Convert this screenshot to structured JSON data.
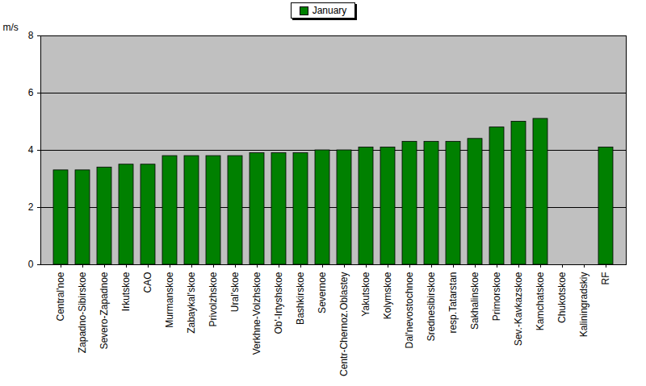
{
  "chart_data": {
    "type": "bar",
    "categories": [
      "Central'noe",
      "Zapadno-Sibirskoe",
      "Severo-Zapadnoe",
      "Irkutskoe",
      "CAO",
      "Murmanskoe",
      "Zabaykal'skoe",
      "Privolzhskoe",
      "Ural'skoe",
      "Verkhne-Volzhskoe",
      "Ob'-Irtyshskoe",
      "Bashkirskoe",
      "Severnoe",
      "Centr-Chernoz.Oblastey",
      "Yakutskoe",
      "Kolymskoe",
      "Dal'nevostochnoe",
      "Srednesibirskoe",
      "resp.Tatarstan",
      "Sakhalinskoe",
      "Primorskoe",
      "Sev.-Kavkazskoe",
      "Kamchatskoe",
      "Chukotskoe",
      "Kaliningradskiy",
      "RF"
    ],
    "series": [
      {
        "name": "January",
        "color": "#008000",
        "values": [
          3.3,
          3.3,
          3.4,
          3.5,
          3.5,
          3.8,
          3.8,
          3.8,
          3.8,
          3.9,
          3.9,
          3.9,
          4.0,
          4.0,
          4.1,
          4.1,
          4.3,
          4.3,
          4.3,
          4.4,
          4.8,
          5.0,
          5.1,
          null,
          null,
          4.1
        ]
      }
    ],
    "y_label": "m/s",
    "ylim": [
      0,
      8
    ],
    "yticks": [
      0,
      2,
      4,
      6,
      8
    ],
    "grid": true,
    "legend": "top"
  }
}
